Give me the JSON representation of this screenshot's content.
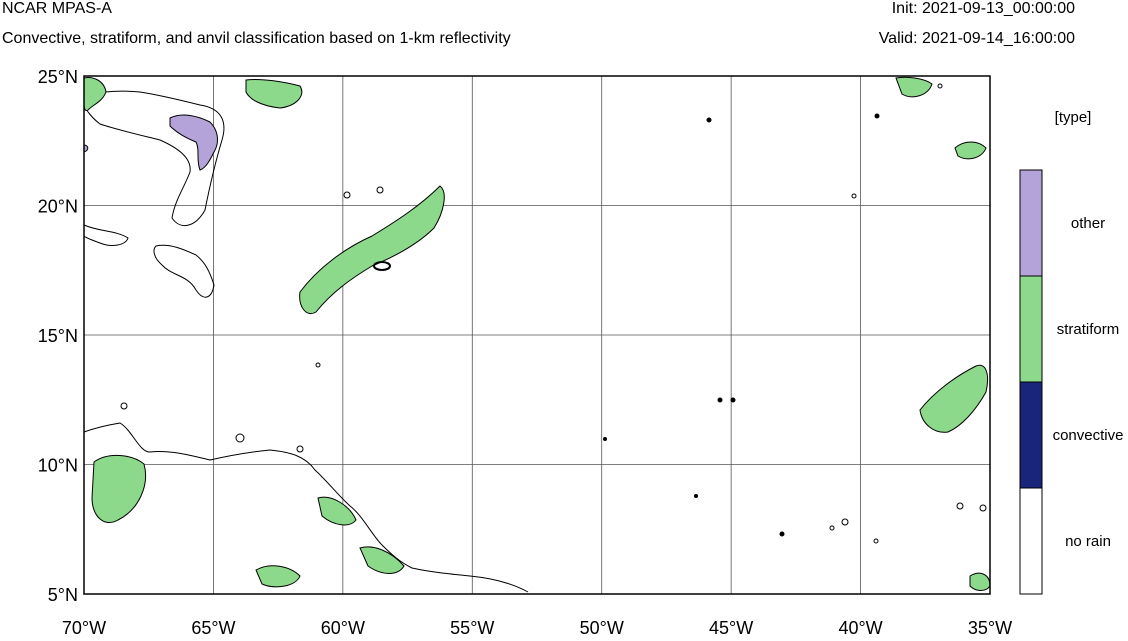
{
  "header": {
    "title": "NCAR MPAS-A",
    "subtitle": "Convective, stratiform, and anvil classification based on 1-km reflectivity",
    "init": "Init: 2021-09-13_00:00:00",
    "valid": "Valid: 2021-09-14_16:00:00"
  },
  "map": {
    "lon_range": [
      -70,
      -35
    ],
    "lat_range": [
      5,
      25
    ],
    "lon_ticks": [
      {
        "value": -70,
        "label": "70°W"
      },
      {
        "value": -65,
        "label": "65°W"
      },
      {
        "value": -60,
        "label": "60°W"
      },
      {
        "value": -55,
        "label": "55°W"
      },
      {
        "value": -50,
        "label": "50°W"
      },
      {
        "value": -45,
        "label": "45°W"
      },
      {
        "value": -40,
        "label": "40°W"
      },
      {
        "value": -35,
        "label": "35°W"
      }
    ],
    "lat_ticks": [
      {
        "value": 25,
        "label": "25°N"
      },
      {
        "value": 20,
        "label": "20°N"
      },
      {
        "value": 15,
        "label": "15°N"
      },
      {
        "value": 10,
        "label": "10°N"
      },
      {
        "value": 5,
        "label": "5°N"
      }
    ],
    "gridlines": true
  },
  "legend": {
    "title": "[type]",
    "classes": [
      {
        "label": "other",
        "color": "#b3a3d9"
      },
      {
        "label": "stratiform",
        "color": "#8cd98c"
      },
      {
        "label": "convective",
        "color": "#18257a"
      },
      {
        "label": "no rain",
        "color": "#ffffff"
      }
    ]
  }
}
